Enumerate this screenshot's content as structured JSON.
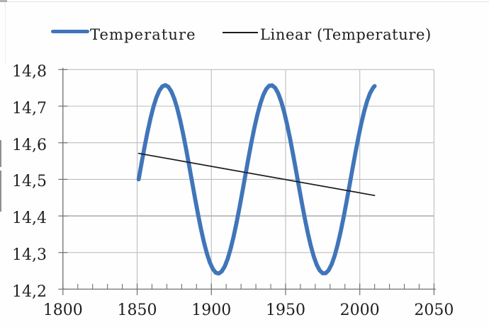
{
  "chart_data": {
    "type": "line",
    "title": "",
    "legend": {
      "position": "top",
      "entries": [
        {
          "label": "Temperature",
          "swatch": "thick-line",
          "color": "#4075b9"
        },
        {
          "label": "Linear (Temperature)",
          "swatch": "thin-line",
          "color": "#1c1c1c"
        }
      ]
    },
    "x_axis": {
      "label": "",
      "range": [
        1800,
        2050
      ],
      "ticks": [
        1800,
        1850,
        1900,
        1950,
        2000,
        2050
      ],
      "tick_labels": [
        "1800",
        "1850",
        "1900",
        "1950",
        "2000",
        "2050"
      ],
      "minor_tick_step": 10
    },
    "y_axis": {
      "label": "",
      "range": [
        14.2,
        14.8
      ],
      "ticks": [
        14.2,
        14.3,
        14.4,
        14.5,
        14.6,
        14.7,
        14.8
      ],
      "tick_labels": [
        "14,2",
        "14,3",
        "14,4",
        "14,5",
        "14,6",
        "14,7",
        "14,8"
      ],
      "decimal_separator": ","
    },
    "grid": {
      "horizontal": true,
      "vertical": true,
      "color": "#bdbdbd",
      "emphasized_y_gridline": 14.4,
      "emphasized_color": "#8d8d8d"
    },
    "colors": {
      "axis": "#6f6f6f",
      "text": "#1f1f1f",
      "background": "#fefefe",
      "temperature_line": "#4075b9",
      "trend_line": "#1c1c1c"
    },
    "series": [
      {
        "name": "Temperature",
        "color": "#4075b9",
        "stroke_width": 5.8,
        "points": [
          [
            1851,
            14.5
          ],
          [
            1853,
            14.5451
          ],
          [
            1855,
            14.5888
          ],
          [
            1857,
            14.6297
          ],
          [
            1859,
            14.6667
          ],
          [
            1861,
            14.6985
          ],
          [
            1863,
            14.7241
          ],
          [
            1865,
            14.7429
          ],
          [
            1867,
            14.7541
          ],
          [
            1869,
            14.7575
          ],
          [
            1871,
            14.7529
          ],
          [
            1873,
            14.7405
          ],
          [
            1875,
            14.7207
          ],
          [
            1877,
            14.6941
          ],
          [
            1879,
            14.6614
          ],
          [
            1881,
            14.6238
          ],
          [
            1883,
            14.5824
          ],
          [
            1885,
            14.5384
          ],
          [
            1887,
            14.4932
          ],
          [
            1889,
            14.4482
          ],
          [
            1891,
            14.4049
          ],
          [
            1893,
            14.3644
          ],
          [
            1895,
            14.3282
          ],
          [
            1897,
            14.2973
          ],
          [
            1899,
            14.2726
          ],
          [
            1901,
            14.255
          ],
          [
            1903,
            14.2449
          ],
          [
            1905,
            14.2427
          ],
          [
            1907,
            14.2485
          ],
          [
            1909,
            14.262
          ],
          [
            1911,
            14.2829
          ],
          [
            1913,
            14.3105
          ],
          [
            1915,
            14.3439
          ],
          [
            1917,
            14.3822
          ],
          [
            1919,
            14.4241
          ],
          [
            1921,
            14.4684
          ],
          [
            1923,
            14.5136
          ],
          [
            1925,
            14.5584
          ],
          [
            1927,
            14.6014
          ],
          [
            1929,
            14.6413
          ],
          [
            1931,
            14.6768
          ],
          [
            1933,
            14.7068
          ],
          [
            1935,
            14.7305
          ],
          [
            1937,
            14.747
          ],
          [
            1939,
            14.7559
          ],
          [
            1941,
            14.7569
          ],
          [
            1943,
            14.75
          ],
          [
            1945,
            14.7353
          ],
          [
            1947,
            14.7134
          ],
          [
            1949,
            14.6849
          ],
          [
            1951,
            14.6506
          ],
          [
            1953,
            14.6117
          ],
          [
            1955,
            14.5694
          ],
          [
            1957,
            14.5249
          ],
          [
            1959,
            14.4796
          ],
          [
            1961,
            14.435
          ],
          [
            1963,
            14.3924
          ],
          [
            1965,
            14.3531
          ],
          [
            1967,
            14.3183
          ],
          [
            1969,
            14.2892
          ],
          [
            1971,
            14.2665
          ],
          [
            1973,
            14.2511
          ],
          [
            1975,
            14.2434
          ],
          [
            1977,
            14.2436
          ],
          [
            1979,
            14.2517
          ],
          [
            1981,
            14.2675
          ],
          [
            1983,
            14.2905
          ],
          [
            1985,
            14.3199
          ],
          [
            1987,
            14.3549
          ],
          [
            1989,
            14.3944
          ],
          [
            1991,
            14.4372
          ],
          [
            1993,
            14.4819
          ],
          [
            1995,
            14.5271
          ],
          [
            1997,
            14.5716
          ],
          [
            1999,
            14.6138
          ],
          [
            2001,
            14.6525
          ],
          [
            2003,
            14.6864
          ],
          [
            2005,
            14.7147
          ],
          [
            2007,
            14.7362
          ],
          [
            2009,
            14.7505
          ],
          [
            2010,
            14.7548
          ]
        ]
      },
      {
        "name": "Linear (Temperature)",
        "color": "#1c1c1c",
        "stroke_width": 1.7,
        "points": [
          [
            1851,
            14.571
          ],
          [
            2010,
            14.456
          ]
        ]
      }
    ]
  }
}
